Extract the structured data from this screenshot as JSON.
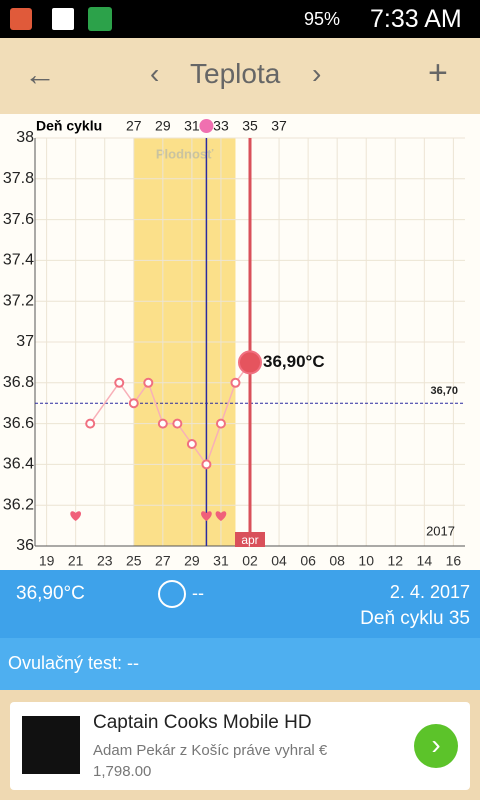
{
  "status_bar": {
    "battery": "95%",
    "time": "7:33 AM"
  },
  "header": {
    "title": "Teplota"
  },
  "chart_data": {
    "type": "line",
    "x_label": "Deň cyklu",
    "xlim": [
      20.2,
      49.8
    ],
    "ylim": [
      36,
      38
    ],
    "yticks": [
      36,
      36.2,
      36.4,
      36.6,
      36.8,
      37,
      37.2,
      37.4,
      37.6,
      37.8,
      38
    ],
    "top_xticks": [
      27,
      29,
      31,
      33,
      35,
      37
    ],
    "xticks": [
      {
        "value": 21,
        "label": "19"
      },
      {
        "value": 23,
        "label": "21"
      },
      {
        "value": 25,
        "label": "23"
      },
      {
        "value": 27,
        "label": "25"
      },
      {
        "value": 29,
        "label": "27"
      },
      {
        "value": 31,
        "label": "29"
      },
      {
        "value": 33,
        "label": "31"
      },
      {
        "value": 35,
        "label": "02"
      },
      {
        "value": 37,
        "label": "04"
      },
      {
        "value": 39,
        "label": "06"
      },
      {
        "value": 41,
        "label": "08"
      },
      {
        "value": 43,
        "label": "10"
      },
      {
        "value": 45,
        "label": "12"
      },
      {
        "value": 47,
        "label": "14"
      },
      {
        "value": 49,
        "label": "16"
      }
    ],
    "grid": true,
    "series": [
      {
        "color": "#f07080",
        "x": [
          24,
          26,
          27,
          28,
          29,
          30,
          31,
          32,
          33,
          34,
          35
        ],
        "values": [
          36.6,
          36.8,
          36.7,
          36.8,
          36.6,
          36.6,
          36.5,
          36.4,
          36.6,
          36.8,
          36.9
        ],
        "value_labels": [
          null,
          null,
          null,
          null,
          null,
          null,
          null,
          null,
          null,
          null,
          "36,90°C"
        ]
      }
    ],
    "fertile": {
      "range": [
        27,
        34
      ],
      "label": "Plodnosť",
      "color": "#fbe08a"
    },
    "ovulation_day": 32,
    "current_day": 35,
    "hearts": [
      23,
      32,
      33
    ],
    "cover_line": {
      "value": 36.7,
      "label": "36,70"
    },
    "month_label": "apr",
    "year_label": "2017"
  },
  "summary": {
    "temperature": "36,90°C",
    "sex": "--",
    "date": "2. 4. 2017",
    "cycle_day": "Deň cyklu 35"
  },
  "ovulation_test": {
    "label": "Ovulačný test: --"
  },
  "ad": {
    "title": "Captain Cooks Mobile HD",
    "line1": "Adam Pekár z Košíc práve vyhral €",
    "line2": "1,798.00"
  }
}
